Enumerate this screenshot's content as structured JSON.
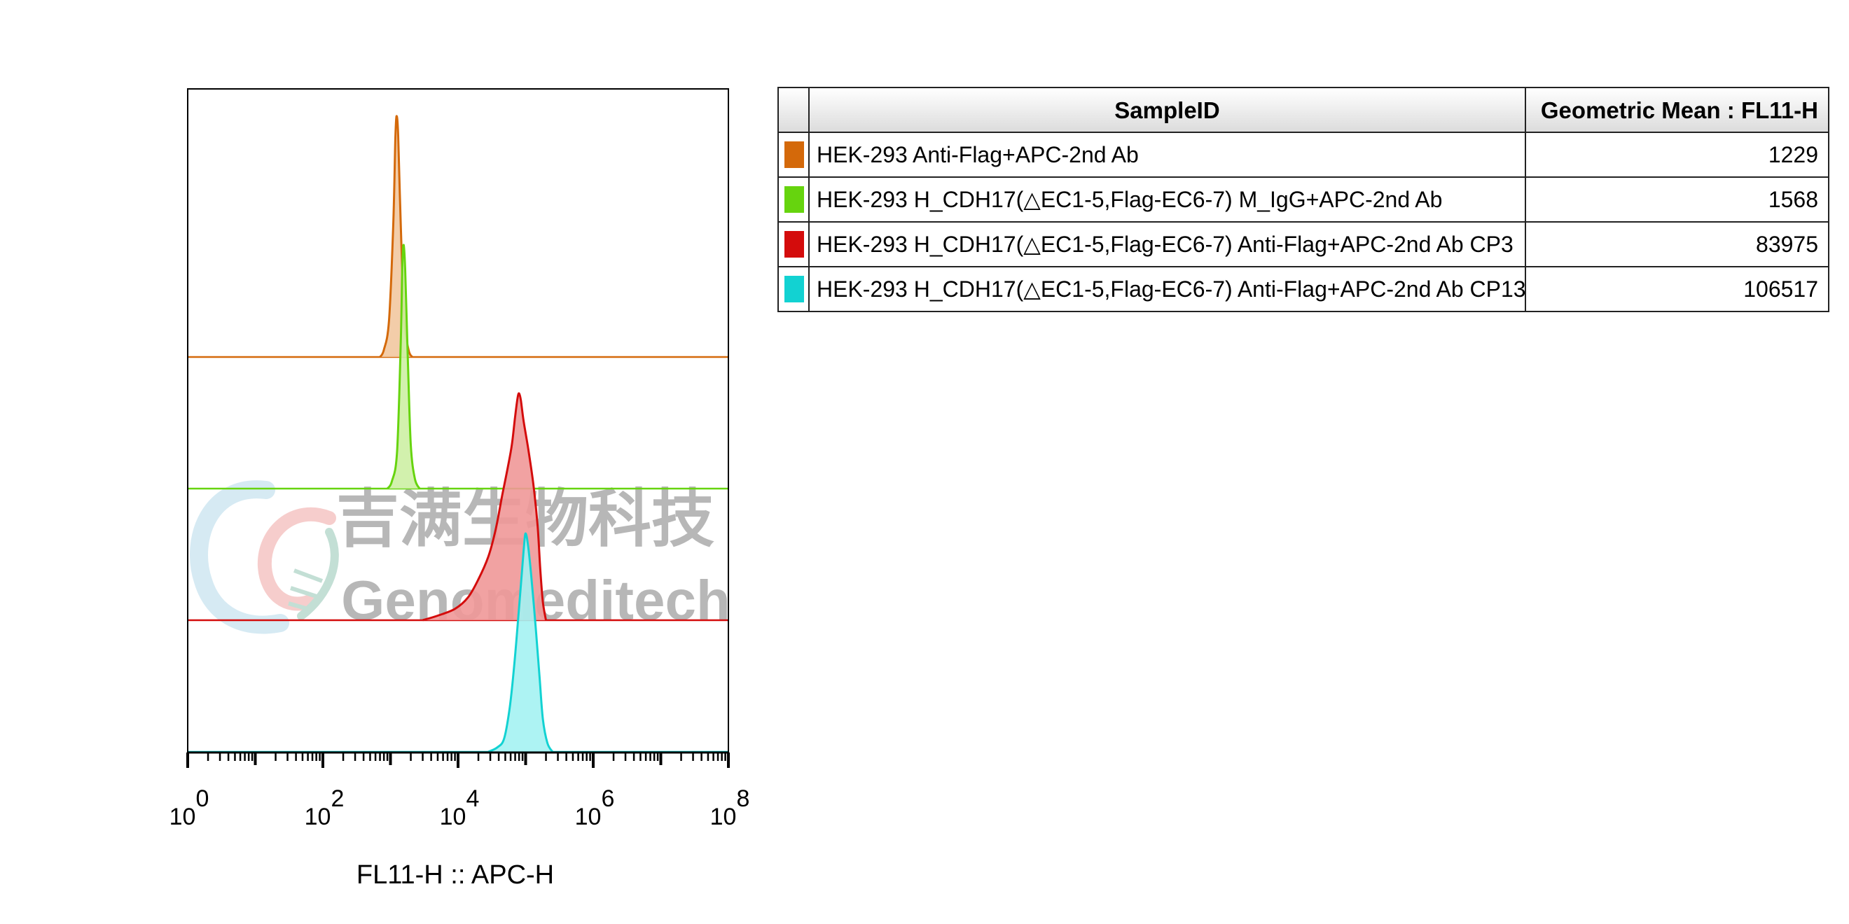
{
  "chart_data": {
    "type": "histogram-overlay",
    "xlabel": "FL11-H :: APC-H",
    "x_scale": "log",
    "xlim": [
      1,
      100000000
    ],
    "x_ticks": [
      {
        "base": "10",
        "exp": "0"
      },
      {
        "base": "10",
        "exp": "2"
      },
      {
        "base": "10",
        "exp": "4"
      },
      {
        "base": "10",
        "exp": "6"
      },
      {
        "base": "10",
        "exp": "8"
      }
    ],
    "series": [
      {
        "name": "HEK-293 Anti-Flag+APC-2nd Ab",
        "color": "#d4690a",
        "fill": "#f2c8a0",
        "points": [
          [
            700,
            0
          ],
          [
            800,
            0.03
          ],
          [
            950,
            0.15
          ],
          [
            1100,
            0.55
          ],
          [
            1180,
            0.9
          ],
          [
            1229,
            1
          ],
          [
            1300,
            0.92
          ],
          [
            1420,
            0.55
          ],
          [
            1600,
            0.16
          ],
          [
            1850,
            0.03
          ],
          [
            2100,
            0
          ]
        ]
      },
      {
        "name": "HEK-293 H_CDH17(△EC1-5,Flag-EC6-7) M_IgG+APC-2nd Ab",
        "color": "#66d40e",
        "fill": "#cdf0a4",
        "points": [
          [
            900,
            0
          ],
          [
            1050,
            0.03
          ],
          [
            1250,
            0.15
          ],
          [
            1420,
            0.6
          ],
          [
            1500,
            0.92
          ],
          [
            1568,
            1
          ],
          [
            1650,
            0.9
          ],
          [
            1800,
            0.55
          ],
          [
            2000,
            0.18
          ],
          [
            2300,
            0.04
          ],
          [
            2700,
            0
          ]
        ]
      },
      {
        "name": "HEK-293 H_CDH17(△EC1-5,Flag-EC6-7) Anti-Flag+APC-2nd Ab CP3",
        "color": "#d40c0c",
        "fill": "#f09898",
        "points": [
          [
            3000,
            0
          ],
          [
            5000,
            0.02
          ],
          [
            9000,
            0.05
          ],
          [
            14000,
            0.1
          ],
          [
            20000,
            0.18
          ],
          [
            28000,
            0.28
          ],
          [
            36000,
            0.4
          ],
          [
            45000,
            0.55
          ],
          [
            55000,
            0.68
          ],
          [
            63000,
            0.78
          ],
          [
            70000,
            0.9
          ],
          [
            76000,
            0.98
          ],
          [
            80000,
            1
          ],
          [
            85000,
            0.97
          ],
          [
            93000,
            0.88
          ],
          [
            110000,
            0.75
          ],
          [
            130000,
            0.6
          ],
          [
            150000,
            0.42
          ],
          [
            165000,
            0.22
          ],
          [
            180000,
            0.08
          ],
          [
            200000,
            0
          ]
        ]
      },
      {
        "name": "HEK-293 H_CDH17(△EC1-5,Flag-EC6-7) Anti-Flag+APC-2nd Ab CP13",
        "color": "#12d2d2",
        "fill": "#a4f2f2",
        "points": [
          [
            28000,
            0
          ],
          [
            38000,
            0.02
          ],
          [
            48000,
            0.06
          ],
          [
            58000,
            0.2
          ],
          [
            68000,
            0.4
          ],
          [
            78000,
            0.62
          ],
          [
            88000,
            0.82
          ],
          [
            95000,
            0.95
          ],
          [
            100000,
            1
          ],
          [
            108000,
            0.95
          ],
          [
            120000,
            0.82
          ],
          [
            140000,
            0.58
          ],
          [
            160000,
            0.35
          ],
          [
            180000,
            0.15
          ],
          [
            210000,
            0.04
          ],
          [
            250000,
            0
          ]
        ]
      }
    ]
  },
  "watermark": {
    "chinese": "吉满生物科技",
    "english": "Genomeditech"
  },
  "legend_table": {
    "header": {
      "sample": "SampleID",
      "value": "Geometric Mean : FL11-H"
    },
    "rows": [
      {
        "color": "#d4690a",
        "sample": "HEK-293 Anti-Flag+APC-2nd Ab",
        "value": "1229"
      },
      {
        "color": "#66d40e",
        "sample": "HEK-293 H_CDH17(△EC1-5,Flag-EC6-7) M_IgG+APC-2nd Ab",
        "value": "1568"
      },
      {
        "color": "#d40c0c",
        "sample": "HEK-293 H_CDH17(△EC1-5,Flag-EC6-7) Anti-Flag+APC-2nd Ab CP3",
        "value": "83975"
      },
      {
        "color": "#12d2d2",
        "sample": "HEK-293 H_CDH17(△EC1-5,Flag-EC6-7) Anti-Flag+APC-2nd Ab CP13",
        "value": "106517"
      }
    ]
  }
}
